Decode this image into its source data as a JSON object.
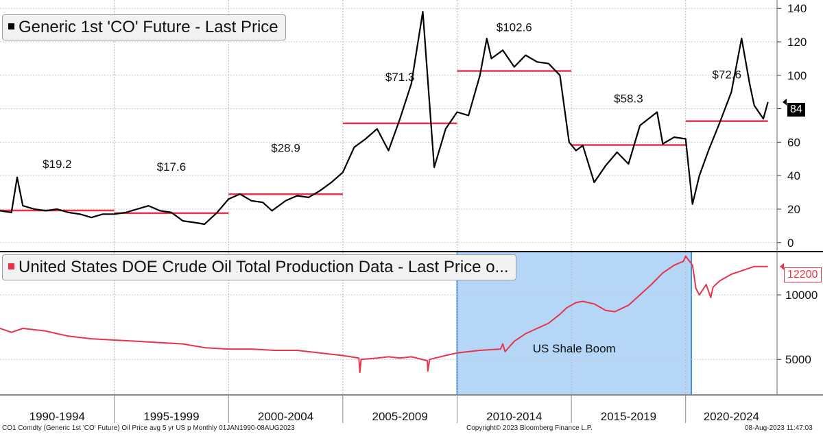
{
  "chart_data": [
    {
      "type": "line",
      "title": "Generic 1st 'CO' Future - Last Price",
      "series_color": "#000000",
      "avg_color": "#e8334a",
      "ylim": [
        -5,
        145
      ],
      "yticks": [
        0,
        20,
        40,
        60,
        80,
        100,
        120,
        140
      ],
      "last_value": "84",
      "x": [
        1990.0,
        1990.5,
        1990.75,
        1991.0,
        1991.5,
        1992.0,
        1992.5,
        1993.0,
        1993.5,
        1994.0,
        1994.5,
        1995.0,
        1995.5,
        1996.0,
        1996.5,
        1997.0,
        1997.5,
        1998.0,
        1998.5,
        1998.95,
        1999.5,
        2000.0,
        2000.5,
        2001.0,
        2001.5,
        2001.9,
        2002.5,
        2003.0,
        2003.5,
        2004.0,
        2004.5,
        2005.0,
        2005.5,
        2006.0,
        2006.5,
        2007.0,
        2007.5,
        2008.0,
        2008.5,
        2009.0,
        2009.5,
        2010.0,
        2010.5,
        2011.0,
        2011.3,
        2011.5,
        2012.0,
        2012.5,
        2013.0,
        2013.5,
        2014.0,
        2014.5,
        2014.9,
        2015.2,
        2015.5,
        2016.0,
        2016.5,
        2017.0,
        2017.5,
        2018.0,
        2018.75,
        2019.0,
        2019.5,
        2020.0,
        2020.3,
        2020.6,
        2021.0,
        2021.5,
        2022.0,
        2022.45,
        2022.8,
        2023.0,
        2023.4,
        2023.6
      ],
      "values": [
        19,
        18,
        39,
        22,
        20,
        19,
        20,
        18,
        17,
        15,
        17,
        17,
        18,
        20,
        22,
        19,
        18,
        13,
        12,
        11,
        18,
        26,
        29,
        25,
        24,
        19,
        25,
        28,
        27,
        31,
        36,
        42,
        57,
        62,
        68,
        55,
        74,
        95,
        138,
        45,
        68,
        78,
        76,
        100,
        122,
        110,
        115,
        105,
        112,
        108,
        107,
        100,
        60,
        55,
        58,
        36,
        46,
        54,
        47,
        70,
        78,
        59,
        63,
        62,
        23,
        40,
        55,
        72,
        90,
        122,
        95,
        82,
        74,
        84
      ],
      "averages": [
        {
          "from": 1990,
          "to": 1995,
          "value": 19.2,
          "label": "$19.2"
        },
        {
          "from": 1995,
          "to": 2000,
          "value": 17.6,
          "label": "$17.6"
        },
        {
          "from": 2000,
          "to": 2005,
          "value": 28.9,
          "label": "$28.9"
        },
        {
          "from": 2005,
          "to": 2010,
          "value": 71.3,
          "label": "$71.3"
        },
        {
          "from": 2010,
          "to": 2015,
          "value": 102.6,
          "label": "$102.6"
        },
        {
          "from": 2015,
          "to": 2020,
          "value": 58.3,
          "label": "$58.3"
        },
        {
          "from": 2020,
          "to": 2023.6,
          "value": 72.6,
          "label": "$72.6"
        }
      ]
    },
    {
      "type": "line",
      "title": "United States DOE Crude Oil Total Production Data - Last Price o...",
      "series_color": "#e8334a",
      "ylim": [
        2300,
        13300
      ],
      "yticks": [
        5000,
        10000
      ],
      "last_value": "12200",
      "x": [
        1990.0,
        1990.5,
        1991.0,
        1991.5,
        1992.0,
        1992.5,
        1993.0,
        1994.0,
        1995.0,
        1996.0,
        1997.0,
        1998.0,
        1999.0,
        2000.0,
        2001.0,
        2002.0,
        2003.0,
        2004.0,
        2004.5,
        2005.0,
        2005.7,
        2005.75,
        2005.8,
        2006.5,
        2007.0,
        2007.5,
        2008.0,
        2008.7,
        2008.72,
        2008.8,
        2009.5,
        2010.0,
        2011.0,
        2011.9,
        2012.0,
        2012.1,
        2012.5,
        2013.0,
        2014.0,
        2014.5,
        2014.8,
        2015.2,
        2015.5,
        2016.0,
        2016.5,
        2016.9,
        2017.5,
        2018.0,
        2018.5,
        2019.0,
        2019.5,
        2019.9,
        2020.0,
        2020.3,
        2020.45,
        2020.6,
        2020.9,
        2021.1,
        2021.2,
        2021.5,
        2022.0,
        2022.5,
        2023.0,
        2023.6
      ],
      "values": [
        7400,
        7100,
        7400,
        7300,
        7200,
        7000,
        6800,
        6600,
        6500,
        6400,
        6300,
        6200,
        5900,
        5800,
        5800,
        5700,
        5700,
        5500,
        5400,
        5300,
        5100,
        4000,
        5000,
        5100,
        5200,
        5100,
        5200,
        4900,
        4100,
        5000,
        5300,
        5500,
        5700,
        5800,
        6200,
        5600,
        6400,
        7000,
        7800,
        8500,
        9000,
        9400,
        9500,
        9300,
        8800,
        8700,
        9200,
        10000,
        10800,
        11700,
        12300,
        12600,
        13000,
        12300,
        10500,
        10000,
        10800,
        9800,
        10600,
        11100,
        11600,
        11900,
        12200,
        12200
      ]
    }
  ],
  "x_axis": {
    "range": [
      1990,
      2024
    ],
    "labels": [
      {
        "text": "1990-1994",
        "from": 1990,
        "to": 1995
      },
      {
        "text": "1995-1999",
        "from": 1995,
        "to": 2000
      },
      {
        "text": "2000-2004",
        "from": 2000,
        "to": 2005
      },
      {
        "text": "2005-2009",
        "from": 2005,
        "to": 2010
      },
      {
        "text": "2010-2014",
        "from": 2010,
        "to": 2015
      },
      {
        "text": "2015-2019",
        "from": 2015,
        "to": 2020
      },
      {
        "text": "2020-2024",
        "from": 2020,
        "to": 2024
      }
    ]
  },
  "annotation": {
    "label": "US Shale Boom",
    "from": 2010,
    "to": 2020.25,
    "fill_color": "#b5d6f7",
    "border_color": "#3d8fe0"
  },
  "footer": {
    "left": "CO1 Comdty (Generic 1st 'CO' Future) Oil Price avg 5 yr US p  Monthly 01JAN1990-08AUG2023",
    "center": "Copyright© 2023 Bloomberg Finance L.P.",
    "right": "08-Aug-2023 11:47:03"
  }
}
